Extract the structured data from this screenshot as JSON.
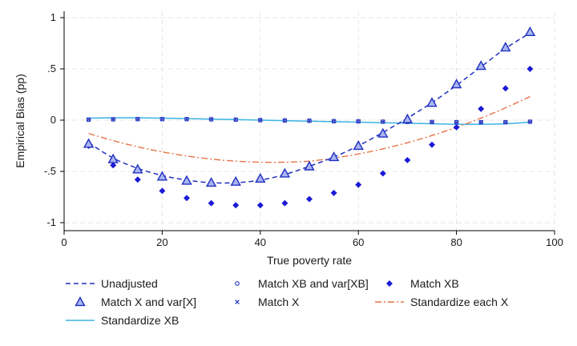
{
  "chart_data": {
    "type": "line",
    "xlabel": "True poverty rate",
    "ylabel": "Empirical Bias (pp)",
    "xlim": [
      0,
      100
    ],
    "ylim": [
      -1,
      1
    ],
    "x_ticks": [
      0,
      20,
      40,
      60,
      80,
      100
    ],
    "x_tick_labels": [
      "0",
      "20",
      "40",
      "60",
      "80",
      "100"
    ],
    "y_ticks": [
      1,
      0.5,
      0,
      -0.5,
      -1
    ],
    "y_tick_labels": [
      "1",
      ".5",
      "0",
      "-.5",
      "-1"
    ],
    "grid": true,
    "legend_position": "bottom",
    "x": [
      5,
      10,
      15,
      20,
      25,
      30,
      35,
      40,
      45,
      50,
      55,
      60,
      65,
      70,
      75,
      80,
      85,
      90,
      95
    ],
    "series": [
      {
        "name": "Unadjusted",
        "style": "dashed-line",
        "color": "#1f2fbf",
        "values": [
          -0.22,
          -0.37,
          -0.47,
          -0.54,
          -0.585,
          -0.61,
          -0.61,
          -0.585,
          -0.53,
          -0.45,
          -0.36,
          -0.25,
          -0.12,
          0.02,
          0.17,
          0.34,
          0.52,
          0.7,
          0.85
        ]
      },
      {
        "name": "Match X and var[X]",
        "style": "triangle-marker",
        "color": "#1f2fbf",
        "values": [
          -0.23,
          -0.38,
          -0.48,
          -0.55,
          -0.59,
          -0.61,
          -0.6,
          -0.57,
          -0.52,
          -0.45,
          -0.36,
          -0.25,
          -0.13,
          0.01,
          0.17,
          0.35,
          0.53,
          0.71,
          0.86
        ]
      },
      {
        "name": "Standardize XB",
        "style": "solid-line",
        "color": "#3bb3e6",
        "values": [
          0.02,
          0.022,
          0.022,
          0.02,
          0.015,
          0.01,
          0.005,
          0.0,
          -0.005,
          -0.01,
          -0.015,
          -0.02,
          -0.025,
          -0.03,
          -0.035,
          -0.04,
          -0.04,
          -0.035,
          -0.02
        ]
      },
      {
        "name": "Match XB and var[XB]",
        "style": "circle-marker",
        "color": "#1f2fbf",
        "values": [
          0.005,
          0.008,
          0.01,
          0.01,
          0.01,
          0.008,
          0.005,
          0.0,
          -0.003,
          -0.006,
          -0.01,
          -0.012,
          -0.015,
          -0.017,
          -0.018,
          -0.02,
          -0.02,
          -0.02,
          -0.015
        ]
      },
      {
        "name": "Match X",
        "style": "x-marker",
        "color": "#1f2fbf",
        "values": [
          0.005,
          0.008,
          0.01,
          0.01,
          0.01,
          0.008,
          0.005,
          0.0,
          -0.003,
          -0.006,
          -0.01,
          -0.012,
          -0.015,
          -0.017,
          -0.018,
          -0.02,
          -0.02,
          -0.02,
          -0.015
        ]
      },
      {
        "name": "Match XB",
        "style": "diamond-marker",
        "color": "#1a1ad6",
        "values": [
          -0.25,
          -0.44,
          -0.58,
          -0.69,
          -0.76,
          -0.81,
          -0.83,
          -0.83,
          -0.81,
          -0.77,
          -0.71,
          -0.63,
          -0.52,
          -0.39,
          -0.24,
          -0.07,
          0.11,
          0.31,
          0.5
        ]
      },
      {
        "name": "Standardize each X",
        "style": "dashdot-line",
        "color": "#e8744a",
        "values": [
          -0.13,
          -0.2,
          -0.26,
          -0.31,
          -0.35,
          -0.38,
          -0.4,
          -0.41,
          -0.41,
          -0.4,
          -0.37,
          -0.33,
          -0.28,
          -0.22,
          -0.15,
          -0.07,
          0.02,
          0.12,
          0.23
        ]
      }
    ]
  }
}
